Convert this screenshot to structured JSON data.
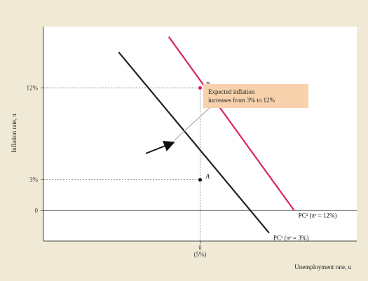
{
  "chart_data": {
    "type": "line",
    "xlabel": "Unemployment rate, u",
    "ylabel": "Inflation rate, π",
    "x_ticks": [
      {
        "value": 5,
        "label": "ū",
        "sublabel": "(5%)"
      }
    ],
    "y_ticks": [
      {
        "value": 0,
        "label": "0"
      },
      {
        "value": 3,
        "label": "3%"
      },
      {
        "value": 12,
        "label": "12%"
      }
    ],
    "xlim": [
      0,
      10
    ],
    "ylim": [
      -3,
      18
    ],
    "series": [
      {
        "name": "PC¹ (πᵉ = 3%)",
        "color": "#222222",
        "x": [
          2.4,
          7.2
        ],
        "y": [
          15.5,
          -2.2
        ]
      },
      {
        "name": "PC² (πᵉ = 12%)",
        "color": "#d6246e",
        "x": [
          4.0,
          8.0
        ],
        "y": [
          17.0,
          0.0
        ]
      }
    ],
    "points": [
      {
        "label": "A",
        "x": 5,
        "y": 3
      },
      {
        "label": "B",
        "x": 5,
        "y": 12
      }
    ],
    "annotation": {
      "lines": [
        "Expected inflation",
        "increases from 3% to 12%"
      ],
      "background": "#f7d2ad"
    },
    "grid": false
  }
}
